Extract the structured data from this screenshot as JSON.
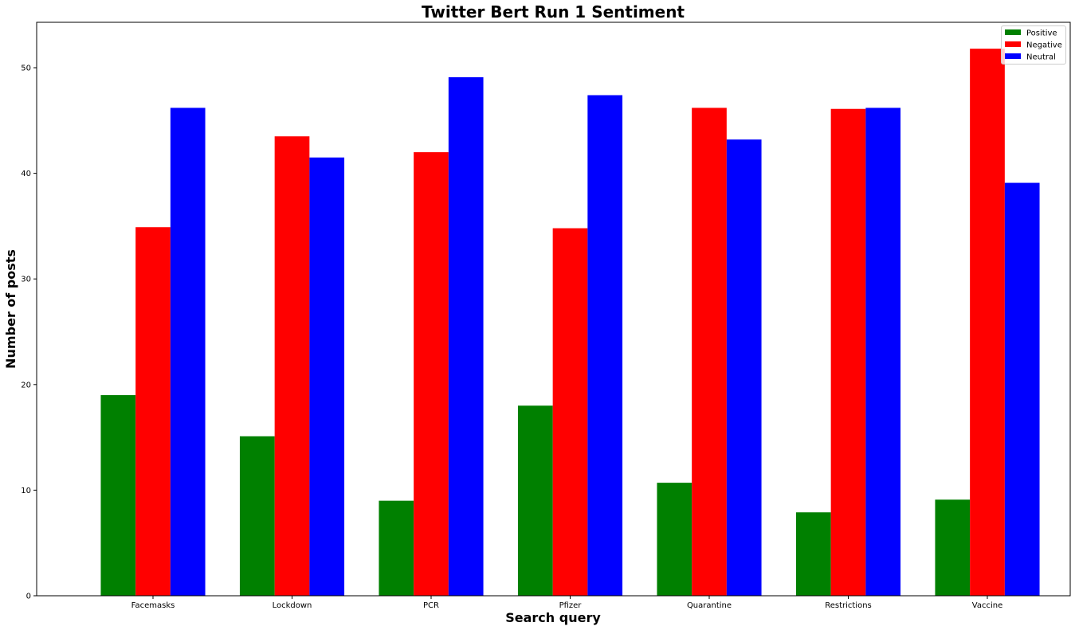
{
  "chart_data": {
    "type": "bar",
    "title": "Twitter Bert Run 1 Sentiment",
    "xlabel": "Search query",
    "ylabel": "Number of posts",
    "categories": [
      "Facemasks",
      "Lockdown",
      "PCR",
      "Pfizer",
      "Quarantine",
      "Restrictions",
      "Vaccine"
    ],
    "series": [
      {
        "name": "Positive",
        "color": "#008000",
        "values": [
          19.0,
          15.1,
          9.0,
          18.0,
          10.7,
          7.9,
          9.1
        ]
      },
      {
        "name": "Negative",
        "color": "#ff0000",
        "values": [
          34.9,
          43.5,
          42.0,
          34.8,
          46.2,
          46.1,
          51.8
        ]
      },
      {
        "name": "Neutral",
        "color": "#0000ff",
        "values": [
          46.2,
          41.5,
          49.1,
          47.4,
          43.2,
          46.2,
          39.1
        ]
      }
    ],
    "ylim": [
      0,
      54.3
    ],
    "yticks": [
      0,
      10,
      20,
      30,
      40,
      50
    ],
    "grid": false,
    "legend_position": "top-right"
  }
}
